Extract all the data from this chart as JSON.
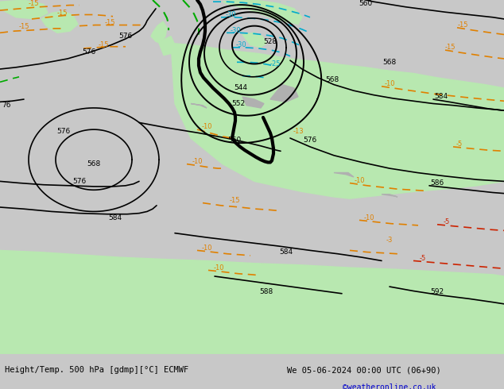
{
  "title_left": "Height/Temp. 500 hPa [gdmp][°C] ECMWF",
  "title_right": "We 05-06-2024 00:00 UTC (06+90)",
  "copyright": "©weatheronline.co.uk",
  "ocean_color": "#c8c8c8",
  "land_color": "#b8e8b0",
  "height_color": "#000000",
  "temp_warm_color": "#e08000",
  "temp_cold_color": "#00aacc",
  "green_line_color": "#00aa00",
  "red_color": "#cc2200"
}
